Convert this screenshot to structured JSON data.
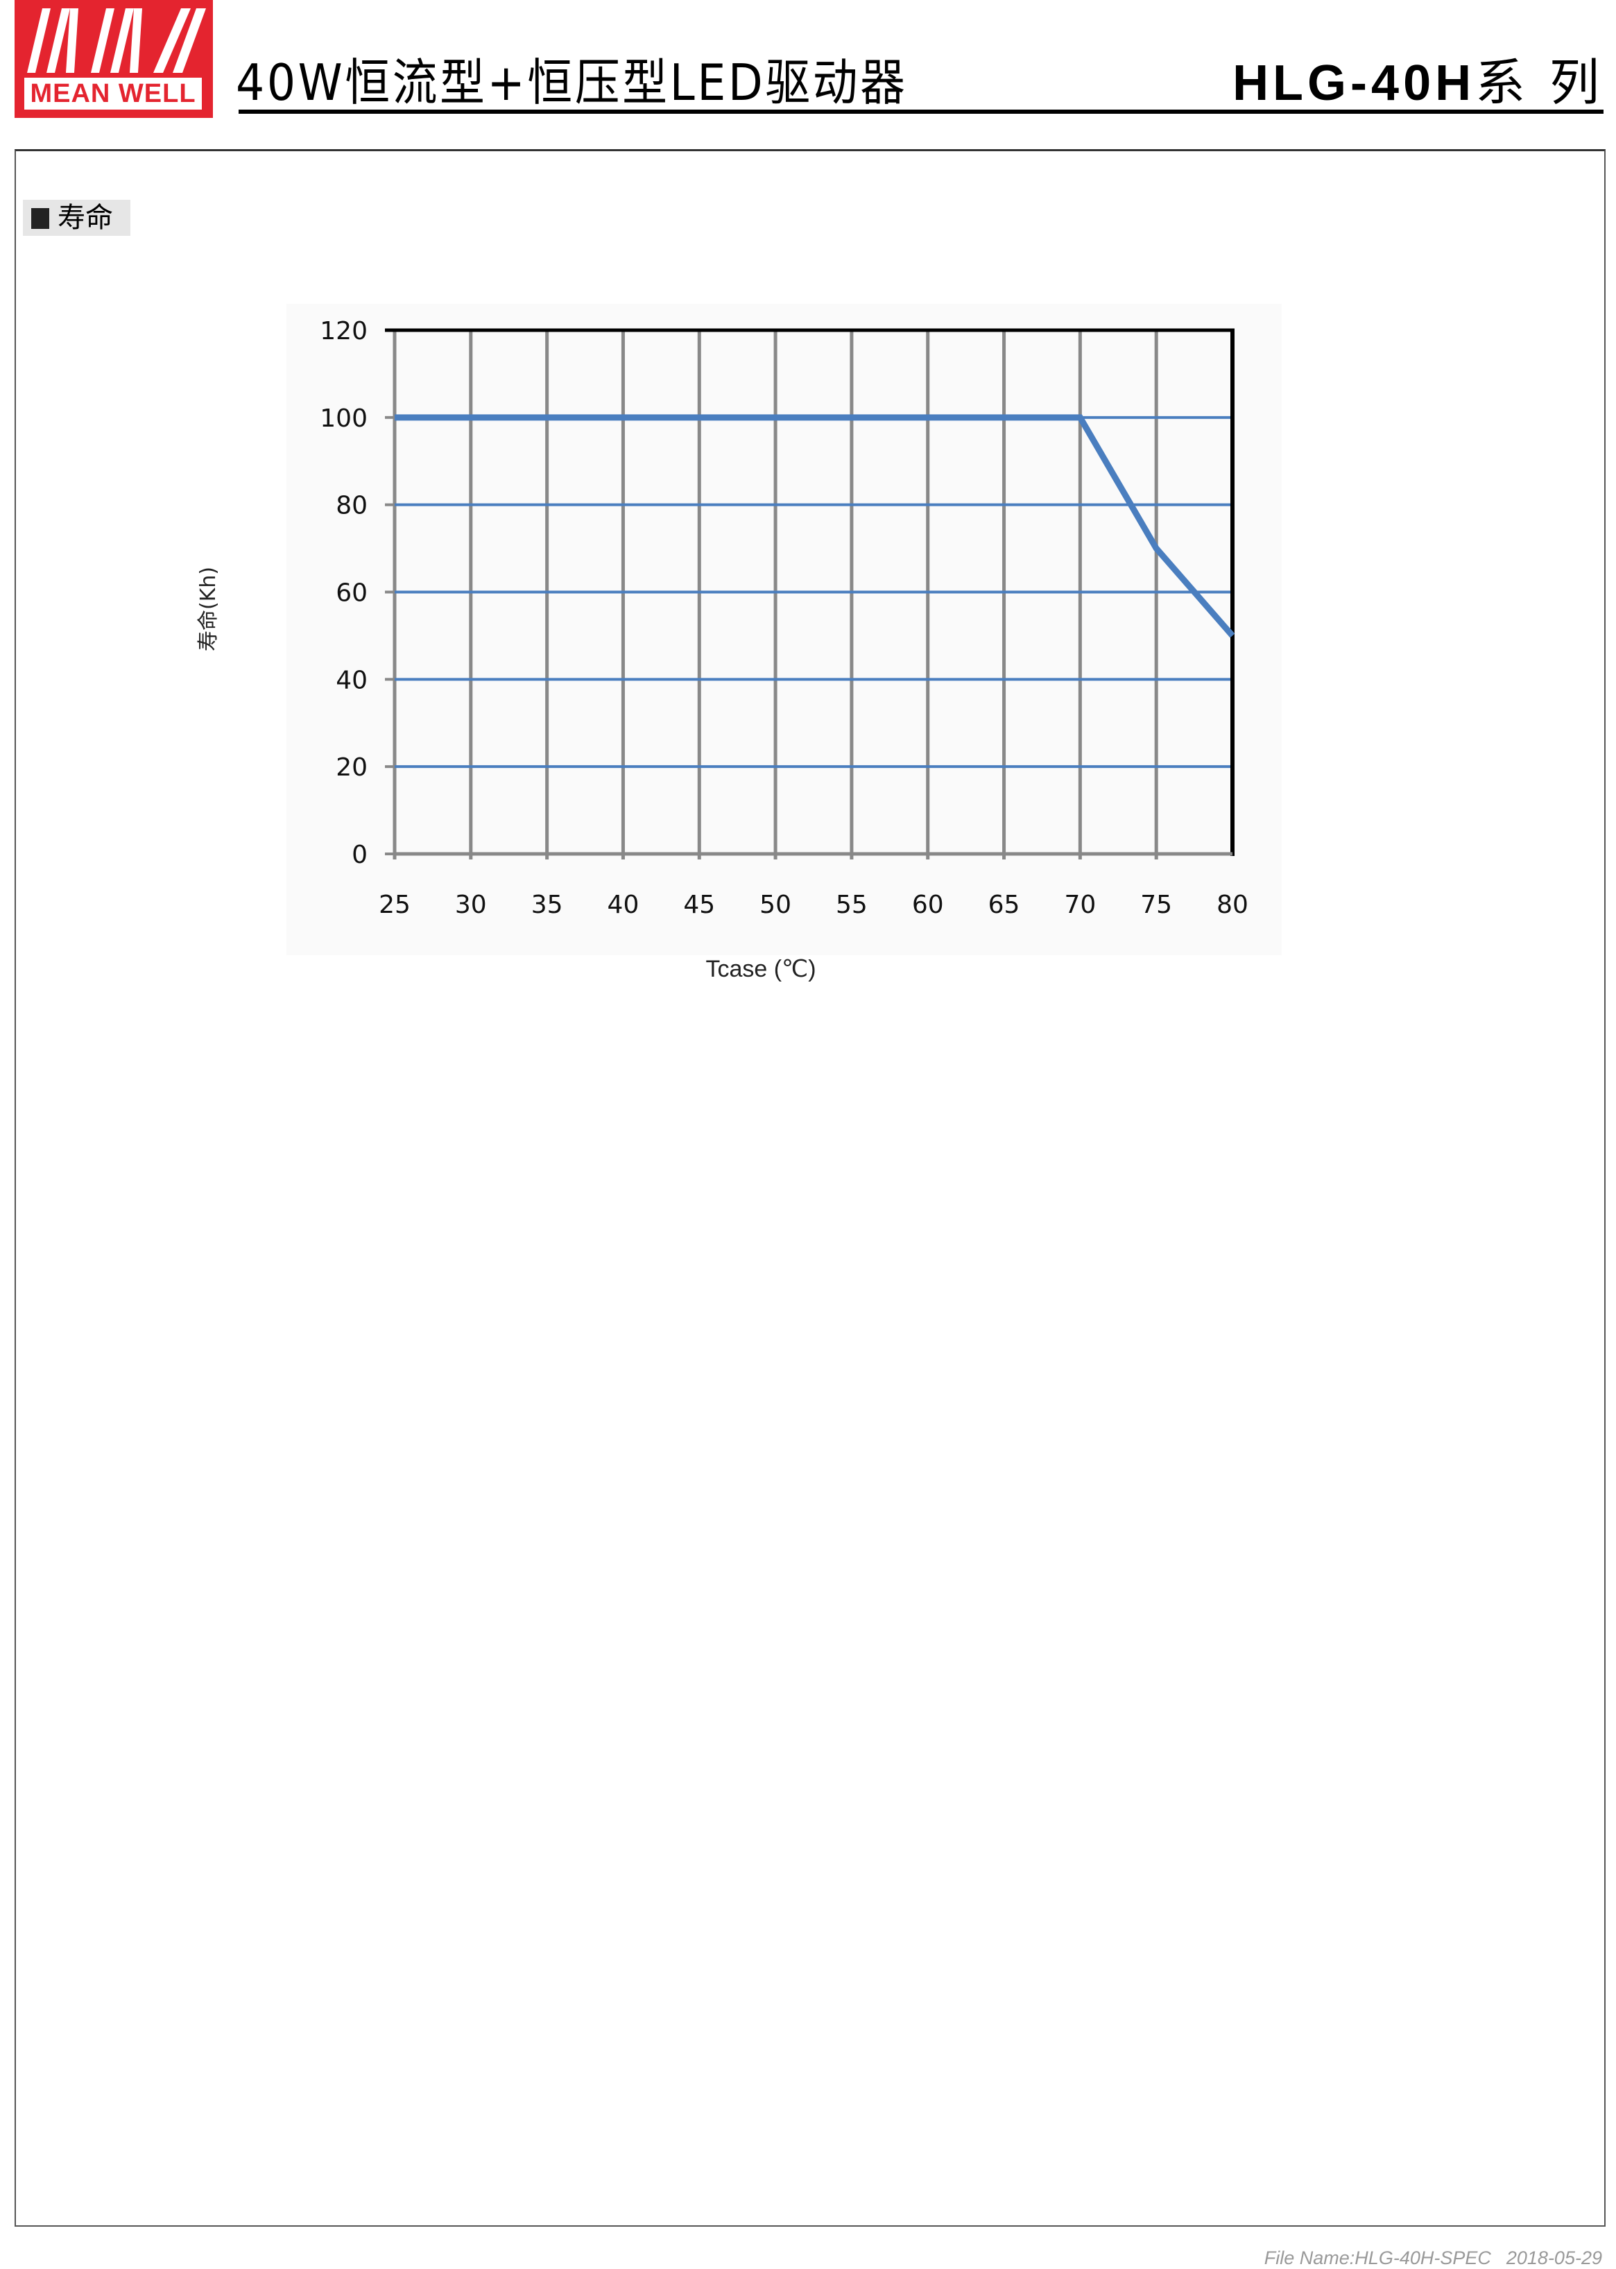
{
  "header": {
    "logo_text": "MEAN WELL",
    "logo_mark": "MW",
    "title": "40W恒流型+恒压型LED驱动器",
    "series_model": "HLG-40H",
    "series_suffix": "系 列"
  },
  "section": {
    "label": "寿命"
  },
  "chart_data": {
    "type": "line",
    "xlabel": "Tcase (℃)",
    "ylabel": "寿命(Kh)",
    "xlim": [
      25,
      80
    ],
    "ylim": [
      0,
      120
    ],
    "x_ticks": [
      25,
      30,
      35,
      40,
      45,
      50,
      55,
      60,
      65,
      70,
      75,
      80
    ],
    "y_ticks": [
      0,
      20,
      40,
      60,
      80,
      100,
      120
    ],
    "grid": true,
    "series": [
      {
        "x": [
          25,
          70,
          75,
          80
        ],
        "y": [
          100,
          100,
          70,
          50
        ],
        "color": "#4a7ebf"
      }
    ],
    "colors": {
      "line": "#4a7ebf",
      "hgrid": "#4a7ebf",
      "vgrid": "#888888"
    }
  },
  "footer": {
    "file_name": "File Name:HLG-40H-SPEC",
    "date": "2018-05-29"
  },
  "colors": {
    "brand": "#e4242f"
  }
}
